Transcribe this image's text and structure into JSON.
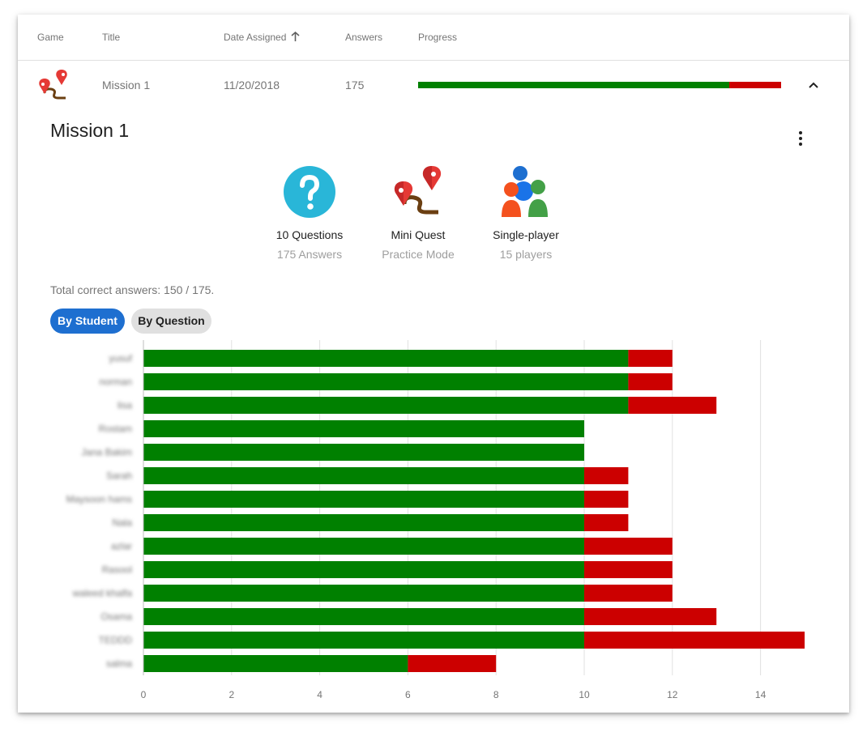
{
  "table": {
    "headers": {
      "game": "Game",
      "title": "Title",
      "date_assigned": "Date Assigned",
      "answers": "Answers",
      "progress": "Progress"
    },
    "row": {
      "game_icon": "mini-quest-map-icon",
      "title": "Mission 1",
      "date": "11/20/2018",
      "answers": "175",
      "progress": {
        "correct": 150,
        "total": 175
      }
    }
  },
  "detail": {
    "title": "Mission 1",
    "info": [
      {
        "icon": "question-icon",
        "primary": "10 Questions",
        "secondary": "175 Answers"
      },
      {
        "icon": "mini-quest-icon",
        "primary": "Mini Quest",
        "secondary": "Practice Mode"
      },
      {
        "icon": "players-icon",
        "primary": "Single-player",
        "secondary": "15 players"
      }
    ],
    "total_text": "Total correct answers: 150 / 175.",
    "tabs": {
      "by_student": "By Student",
      "by_question": "By Question"
    }
  },
  "colors": {
    "correct": "#008000",
    "incorrect": "#cc0000",
    "accent": "#1e6fd0",
    "question_icon": "#29b6d8"
  },
  "chart_data": {
    "type": "bar",
    "orientation": "horizontal",
    "stacked": true,
    "categories": [
      "yusuf",
      "norman",
      "lisa",
      "Rostam",
      "Jana Bakim",
      "Sarah",
      "Maysoon hams",
      "Nala",
      "azlar",
      "Rasool",
      "waleed khalfa",
      "Osama",
      "TEDDD",
      "salma"
    ],
    "series": [
      {
        "values": [
          11,
          11,
          11,
          10,
          10,
          10,
          10,
          10,
          10,
          10,
          10,
          10,
          10,
          6
        ]
      },
      {
        "values": [
          1,
          1,
          2,
          0,
          0,
          1,
          1,
          1,
          2,
          2,
          2,
          3,
          5,
          2
        ]
      }
    ],
    "xlim": [
      0,
      15
    ],
    "xticks": [
      "0",
      "2",
      "4",
      "6",
      "8",
      "10",
      "12",
      "14"
    ],
    "grid": true
  }
}
